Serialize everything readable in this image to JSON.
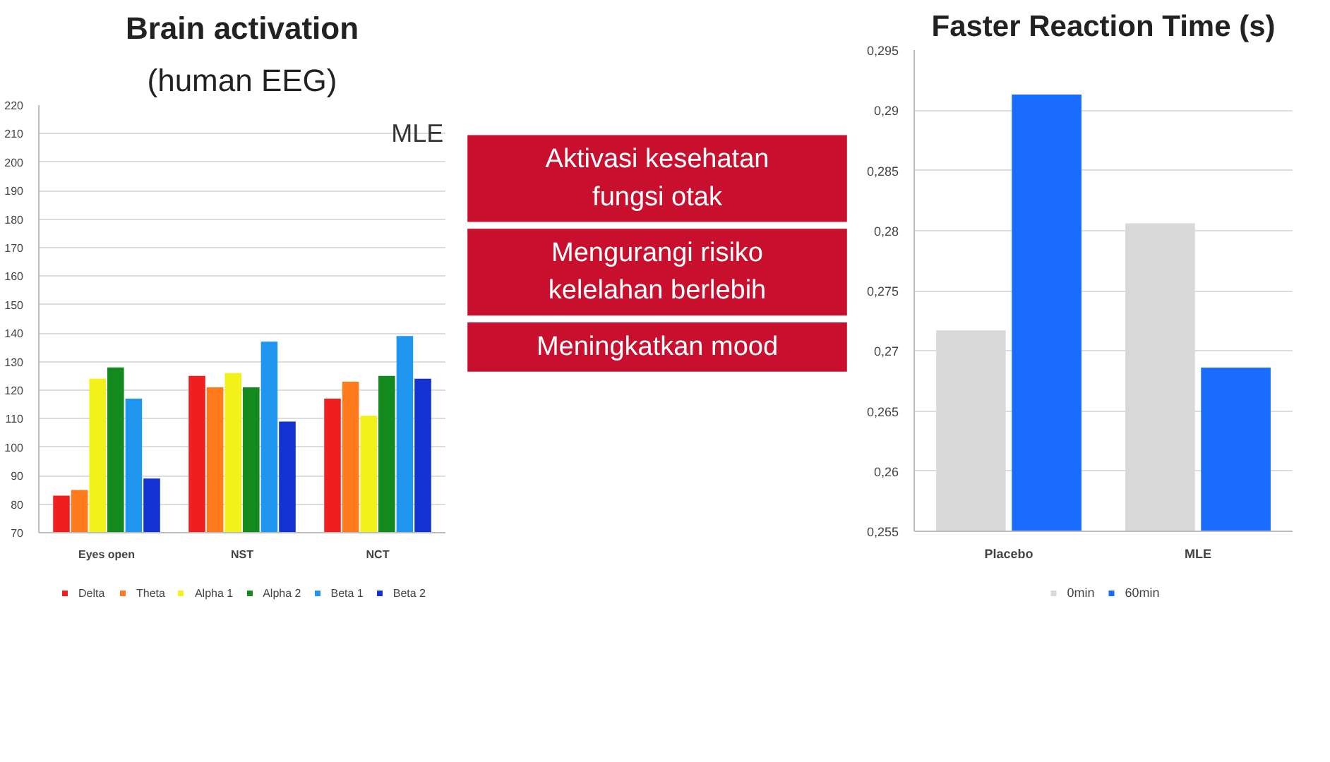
{
  "chart_data": [
    {
      "type": "bar",
      "title": "Brain activation",
      "subtitle": "(human EEG)",
      "categories": [
        "Eyes open",
        "NST",
        "NCT"
      ],
      "series": [
        {
          "name": "Delta",
          "color": "#f01e1e",
          "values": [
            83,
            125,
            117
          ]
        },
        {
          "name": "Theta",
          "color": "#ff7a1a",
          "values": [
            85,
            121,
            123
          ]
        },
        {
          "name": "Alpha 1",
          "color": "#f2f21a",
          "values": [
            124,
            126,
            111
          ]
        },
        {
          "name": "Alpha 2",
          "color": "#148a1e",
          "values": [
            128,
            121,
            125
          ]
        },
        {
          "name": "Beta 1",
          "color": "#1e96f0",
          "values": [
            117,
            137,
            139
          ]
        },
        {
          "name": "Beta 2",
          "color": "#1432d2",
          "values": [
            89,
            109,
            124
          ]
        }
      ],
      "ylim": [
        70,
        220
      ],
      "yticks": [
        70,
        80,
        90,
        100,
        110,
        120,
        130,
        140,
        150,
        160,
        170,
        180,
        190,
        200,
        210,
        220
      ],
      "grid": "y",
      "legend": "bottom",
      "annotations": [
        "MLE"
      ]
    },
    {
      "type": "other",
      "color": "#c8102e",
      "annotations": [
        "Aktivasi kesehatan fungsi otak",
        "Mengurangi risiko kelelahan berlebih",
        "Meningkatkan mood"
      ]
    },
    {
      "type": "bar",
      "title": "Faster Reaction Time (s)",
      "categories": [
        "Placebo",
        "MLE"
      ],
      "series": [
        {
          "name": "0min",
          "color": "#d9d9d9",
          "values": [
            0.2717,
            0.2806
          ]
        },
        {
          "name": "60min",
          "color": "#1a6cff",
          "values": [
            0.2913,
            0.2686
          ]
        }
      ],
      "ylim": [
        0.255,
        0.295
      ],
      "yticks": [
        {
          "value": 0.255,
          "label": "0,255"
        },
        {
          "value": 0.26,
          "label": "0,26"
        },
        {
          "value": 0.265,
          "label": "0,265"
        },
        {
          "value": 0.27,
          "label": "0,27"
        },
        {
          "value": 0.275,
          "label": "0,275"
        },
        {
          "value": 0.28,
          "label": "0,28"
        },
        {
          "value": 0.285,
          "label": "0,285"
        },
        {
          "value": 0.29,
          "label": "0,29"
        },
        {
          "value": 0.295,
          "label": "0,295"
        }
      ],
      "grid": "y",
      "legend": "bottom"
    }
  ]
}
